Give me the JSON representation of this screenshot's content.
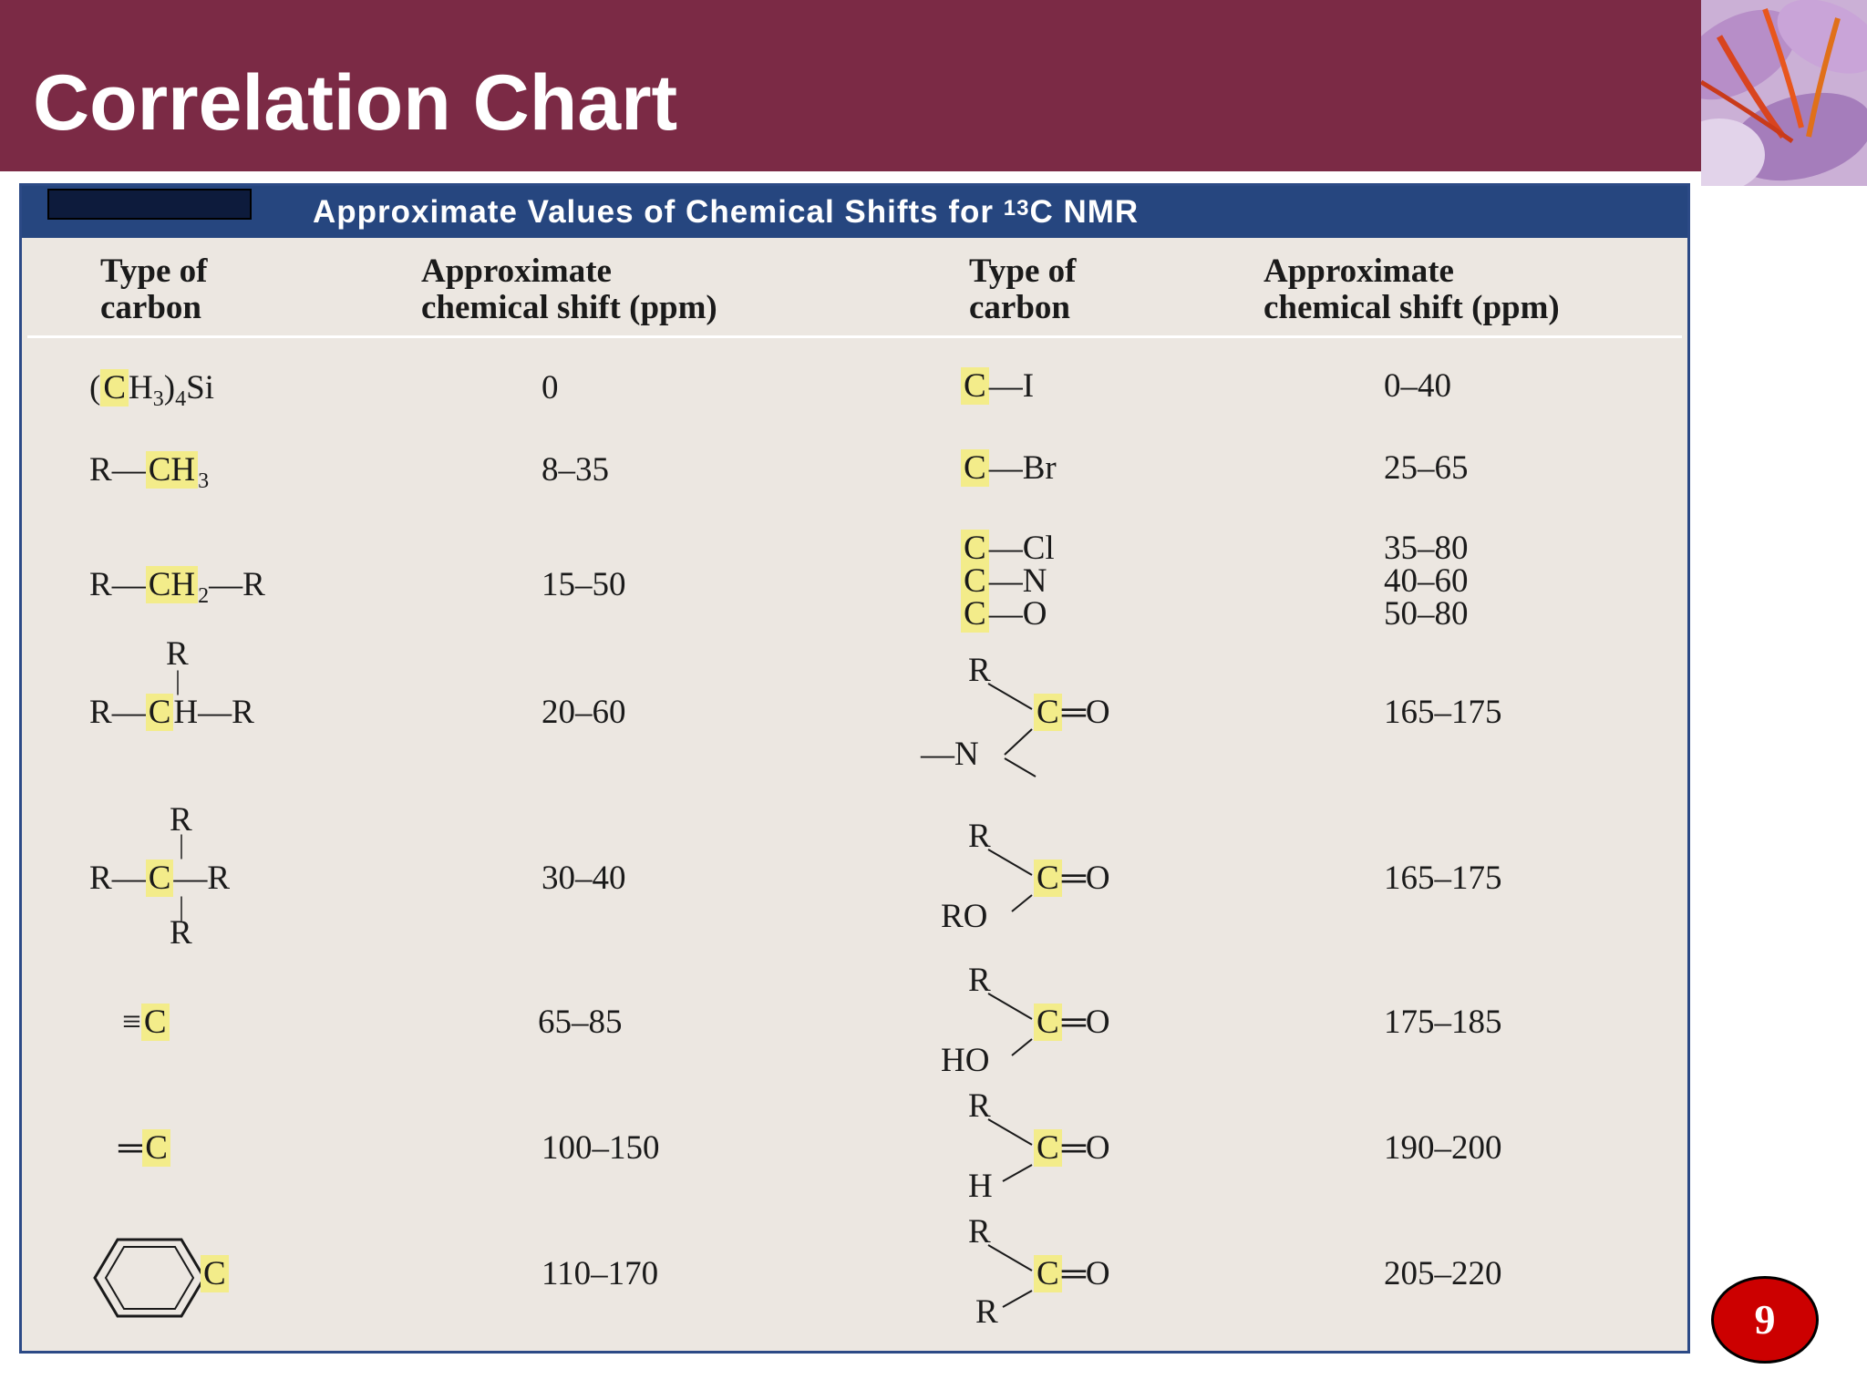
{
  "slide": {
    "title": "Correlation Chart",
    "page_number": "9"
  },
  "table": {
    "caption": "Approximate Values of Chemical Shifts for ",
    "caption_sup": "13",
    "caption_end": "C NMR",
    "headers": {
      "type_line1": "Type of",
      "type_line2": "carbon",
      "shift_line1": "Approximate",
      "shift_line2": "chemical shift (ppm)"
    },
    "left_rows": [
      {
        "shift": "0"
      },
      {
        "shift": "8–35"
      },
      {
        "shift": "15–50"
      },
      {
        "shift": "20–60"
      },
      {
        "shift": "30–40"
      },
      {
        "shift": "65–85"
      },
      {
        "shift": "100–150"
      },
      {
        "shift": "110–170"
      }
    ],
    "right_rows": [
      {
        "shift": "0–40"
      },
      {
        "shift": "25–65"
      },
      {
        "shift_a": "35–80",
        "shift_b": "40–60",
        "shift_c": "50–80"
      },
      {
        "shift": "165–175"
      },
      {
        "shift": "165–175"
      },
      {
        "shift": "175–185"
      },
      {
        "shift": "190–200"
      },
      {
        "shift": "205–220"
      }
    ]
  },
  "structures": {
    "r": "R",
    "c": "C",
    "ch": "CH",
    "ch2": "CH",
    "ch3": "CH",
    "sub2": "2",
    "sub3": "3",
    "sub4": "4",
    "tms_open": "(",
    "tms_mid": ")",
    "si": "Si",
    "i": "I",
    "br": "Br",
    "cl": "Cl",
    "n": "N",
    "o": "O",
    "ro": "RO",
    "ho": "HO",
    "h": "H",
    "dash": "—",
    "dblbond": "═",
    "triple": "≡",
    "eq": "═"
  },
  "colors": {
    "header_bar": "#7b2a45",
    "table_caption_bar": "#26467f",
    "table_background": "#ece7e1",
    "highlight": "#f3ec8a",
    "page_badge": "#cc0000"
  }
}
